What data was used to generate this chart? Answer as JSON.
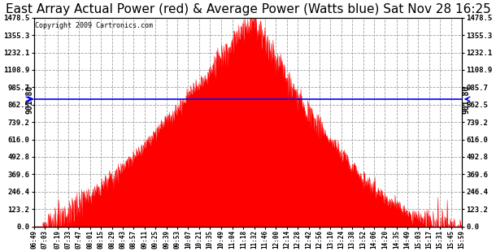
{
  "title": "East Array Actual Power (red) & Average Power (Watts blue) Sat Nov 28 16:25",
  "copyright": "Copyright 2009 Cartronics.com",
  "avg_power": 901.8,
  "y_ticks": [
    0.0,
    123.2,
    246.4,
    369.6,
    492.8,
    616.0,
    739.2,
    862.5,
    985.7,
    1108.9,
    1232.1,
    1355.3,
    1478.5
  ],
  "y_max": 1478.5,
  "y_min": 0.0,
  "background_color": "#ffffff",
  "fill_color": "#ff0000",
  "line_color": "#0000ff",
  "grid_color": "#888888",
  "title_fontsize": 11,
  "x_labels": [
    "06:49",
    "07:03",
    "07:19",
    "07:33",
    "07:47",
    "08:01",
    "08:15",
    "08:29",
    "08:43",
    "08:57",
    "09:11",
    "09:25",
    "09:39",
    "09:53",
    "10:07",
    "10:21",
    "10:35",
    "10:49",
    "11:04",
    "11:18",
    "11:32",
    "11:46",
    "12:00",
    "12:14",
    "12:28",
    "12:42",
    "12:56",
    "13:10",
    "13:24",
    "13:38",
    "13:52",
    "14:06",
    "14:20",
    "14:35",
    "14:49",
    "15:03",
    "15:17",
    "15:31",
    "15:45",
    "15:59"
  ]
}
